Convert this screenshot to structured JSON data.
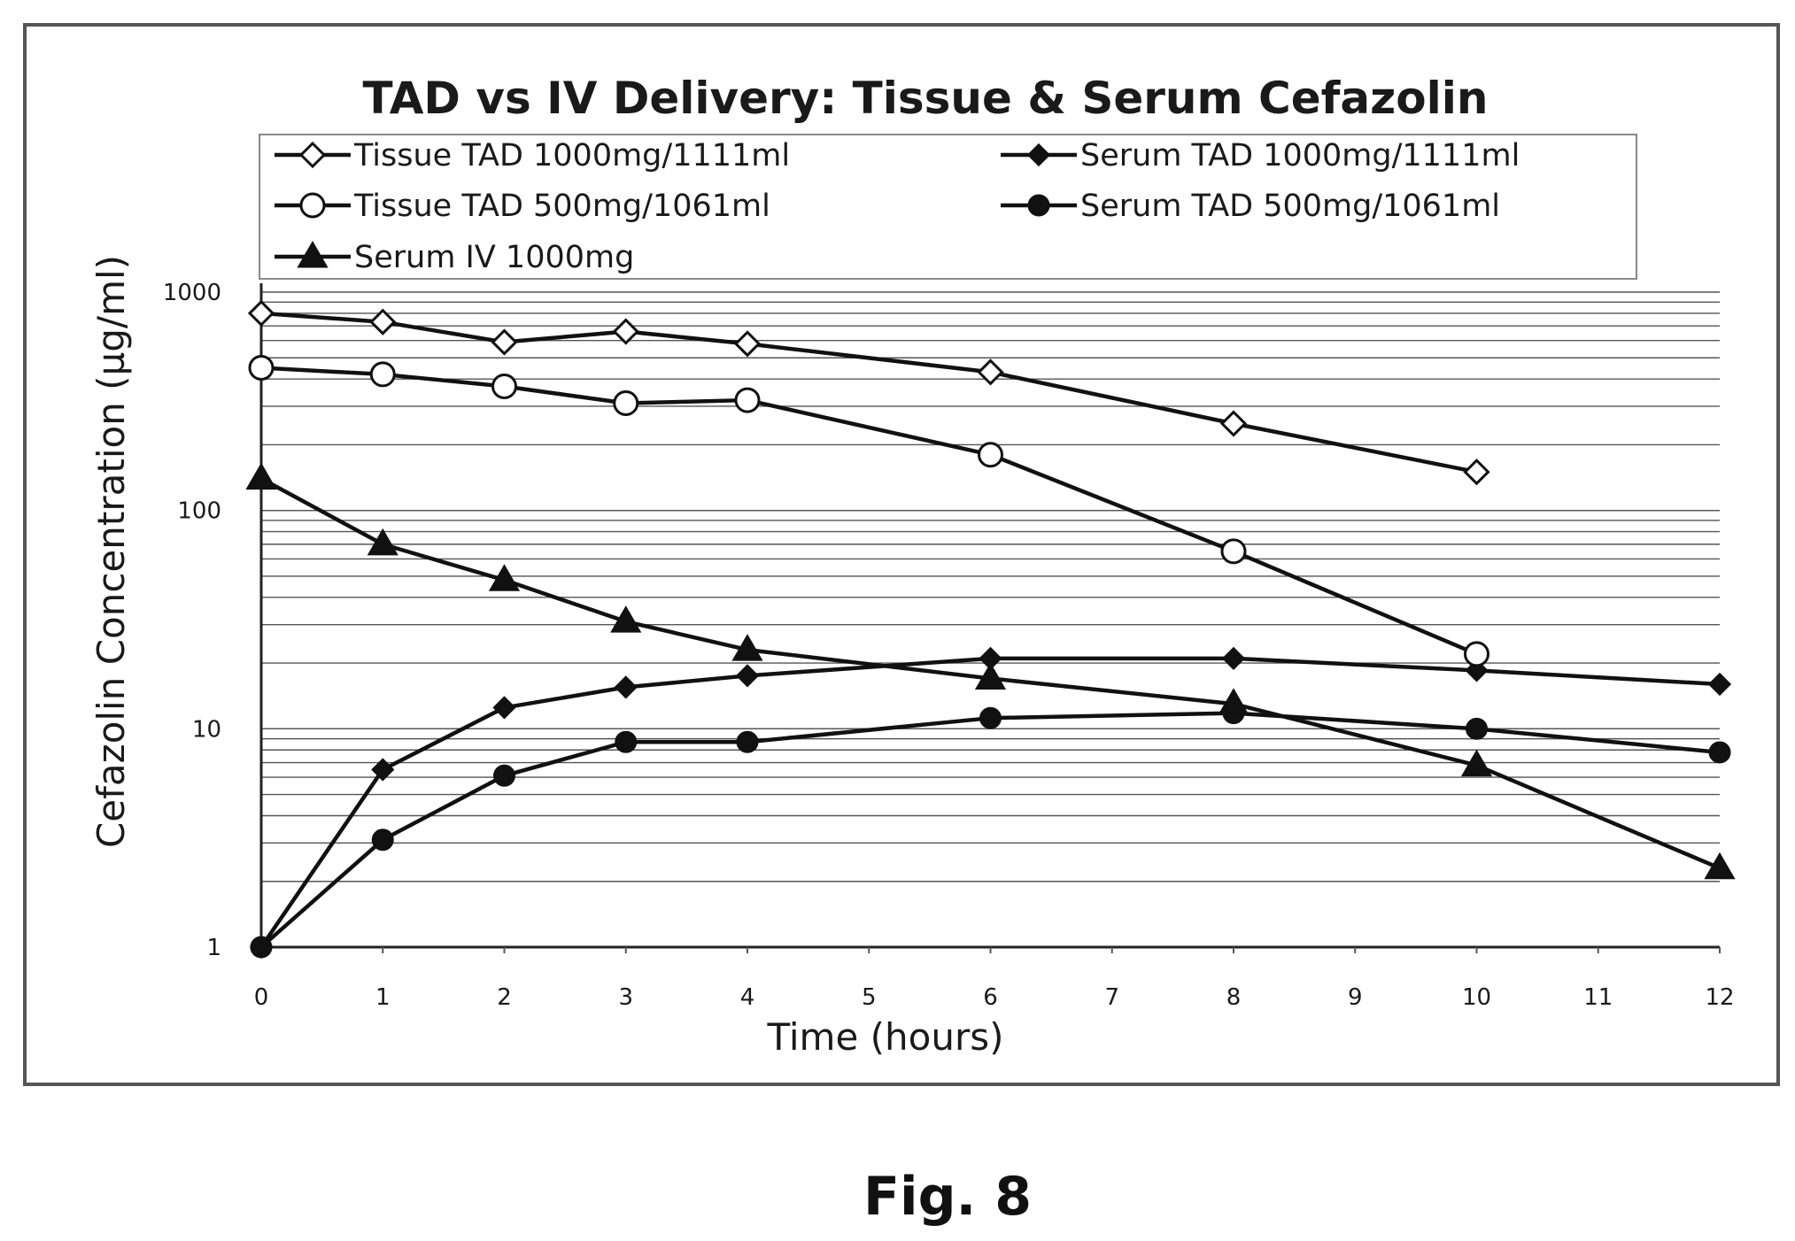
{
  "chart_data": {
    "type": "line",
    "title": "TAD vs IV Delivery: Tissue & Serum Cefazolin",
    "xlabel": "Time (hours)",
    "ylabel": "Cefazolin Concentration (µg/ml)",
    "x_ticks": [
      0,
      1,
      2,
      3,
      4,
      5,
      6,
      7,
      8,
      9,
      10,
      11,
      12
    ],
    "y_ticks": [
      1,
      10,
      100,
      1000
    ],
    "xlim": [
      0,
      12
    ],
    "ylim": [
      1,
      1000
    ],
    "y_scale": "log",
    "grid": "horizontal",
    "legend_position": "top",
    "series": [
      {
        "name": "Tissue TAD 1000mg/1111ml",
        "marker": "open-diamond",
        "x": [
          0,
          1,
          2,
          3,
          4,
          6,
          8,
          10
        ],
        "y": [
          800,
          730,
          590,
          660,
          580,
          430,
          250,
          150
        ]
      },
      {
        "name": "Serum TAD 1000mg/1111ml",
        "marker": "filled-diamond",
        "x": [
          0,
          1,
          2,
          3,
          4,
          6,
          8,
          10,
          12
        ],
        "y": [
          1,
          6.5,
          12.5,
          15.5,
          17.5,
          21,
          21,
          18.5,
          16
        ]
      },
      {
        "name": "Tissue TAD 500mg/1061ml",
        "marker": "open-circle",
        "x": [
          0,
          1,
          2,
          3,
          4,
          6,
          8,
          10
        ],
        "y": [
          450,
          420,
          370,
          310,
          320,
          180,
          65,
          22
        ]
      },
      {
        "name": "Serum TAD 500mg/1061ml",
        "marker": "filled-circle",
        "x": [
          0,
          1,
          2,
          3,
          4,
          6,
          8,
          10,
          12
        ],
        "y": [
          1,
          3.1,
          6.1,
          8.7,
          8.7,
          11.2,
          11.8,
          10,
          7.8
        ]
      },
      {
        "name": "Serum IV 1000mg",
        "marker": "filled-triangle",
        "x": [
          0,
          1,
          2,
          3,
          4,
          6,
          8,
          10,
          12
        ],
        "y": [
          140,
          70,
          48,
          31,
          23,
          17,
          13,
          6.8,
          2.3
        ]
      }
    ]
  },
  "figure_caption": "Fig. 8"
}
